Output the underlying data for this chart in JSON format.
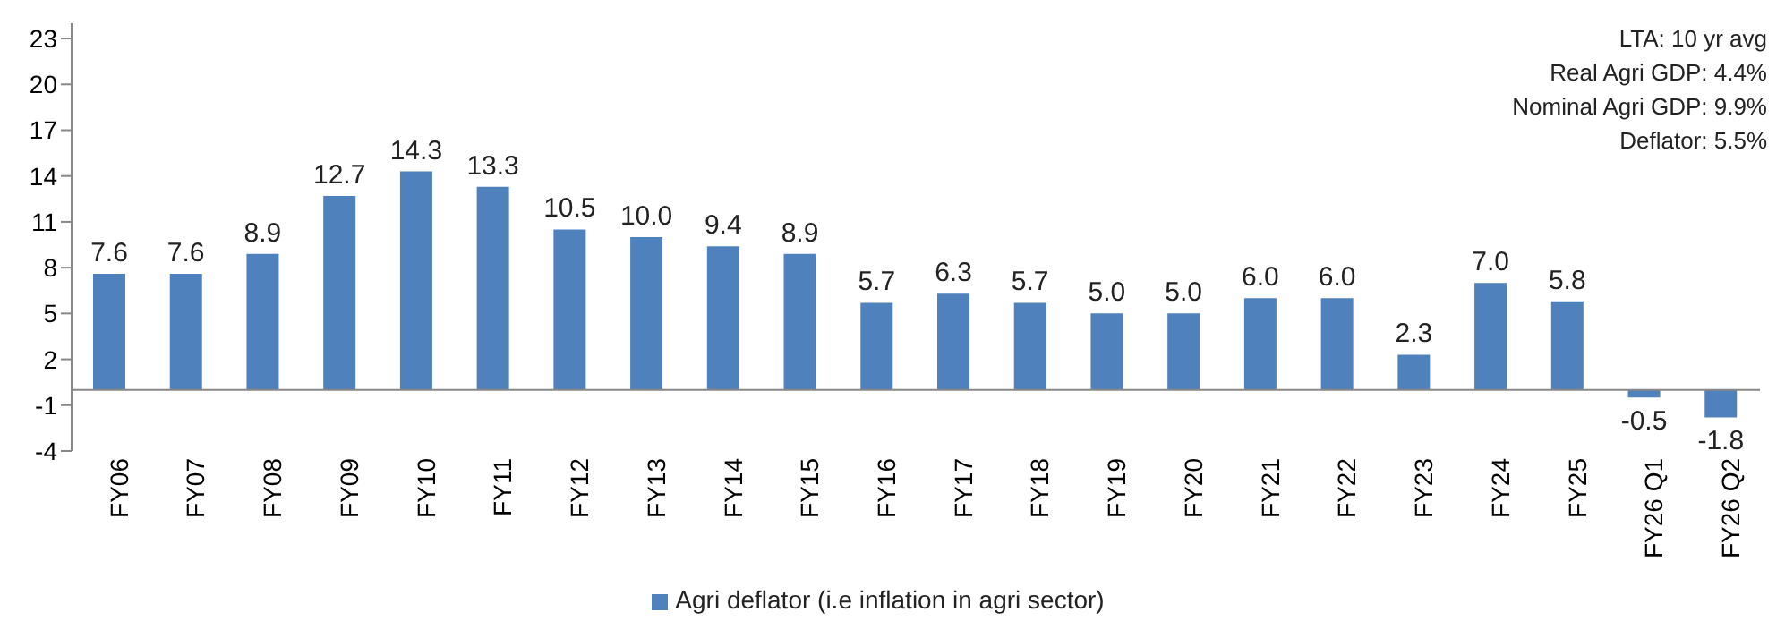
{
  "chart_data": {
    "type": "bar",
    "categories": [
      "FY06",
      "FY07",
      "FY08",
      "FY09",
      "FY10",
      "FY11",
      "FY12",
      "FY13",
      "FY14",
      "FY15",
      "FY16",
      "FY17",
      "FY18",
      "FY19",
      "FY20",
      "FY21",
      "FY22",
      "FY23",
      "FY24",
      "FY25",
      "FY26 Q1",
      "FY26 Q2"
    ],
    "series": [
      {
        "name": "Agri deflator (i.e inflation in agri sector)",
        "color": "#4f81bd",
        "values": [
          7.6,
          7.6,
          8.9,
          12.7,
          14.3,
          13.3,
          10.5,
          10.0,
          9.4,
          8.9,
          5.7,
          6.3,
          5.7,
          5.0,
          5.0,
          6.0,
          6.0,
          2.3,
          7.0,
          5.8,
          -0.5,
          -1.8
        ]
      }
    ],
    "value_labels": [
      "7.6",
      "7.6",
      "8.9",
      "12.7",
      "14.3",
      "13.3",
      "10.5",
      "10.0",
      "9.4",
      "8.9",
      "5.7",
      "6.3",
      "5.7",
      "5.0",
      "5.0",
      "6.0",
      "6.0",
      "2.3",
      "7.0",
      "5.8",
      "-0.5",
      "-1.8"
    ],
    "ylim": [
      -4,
      24
    ],
    "yticks": [
      -4,
      -1,
      2,
      5,
      8,
      11,
      14,
      17,
      20,
      23
    ],
    "grid": false,
    "legend": "bottom",
    "annotations": [
      "LTA: 10 yr avg",
      "Real Agri GDP: 4.4%",
      "Nominal Agri GDP: 9.9%",
      "Deflator: 5.5%"
    ]
  }
}
